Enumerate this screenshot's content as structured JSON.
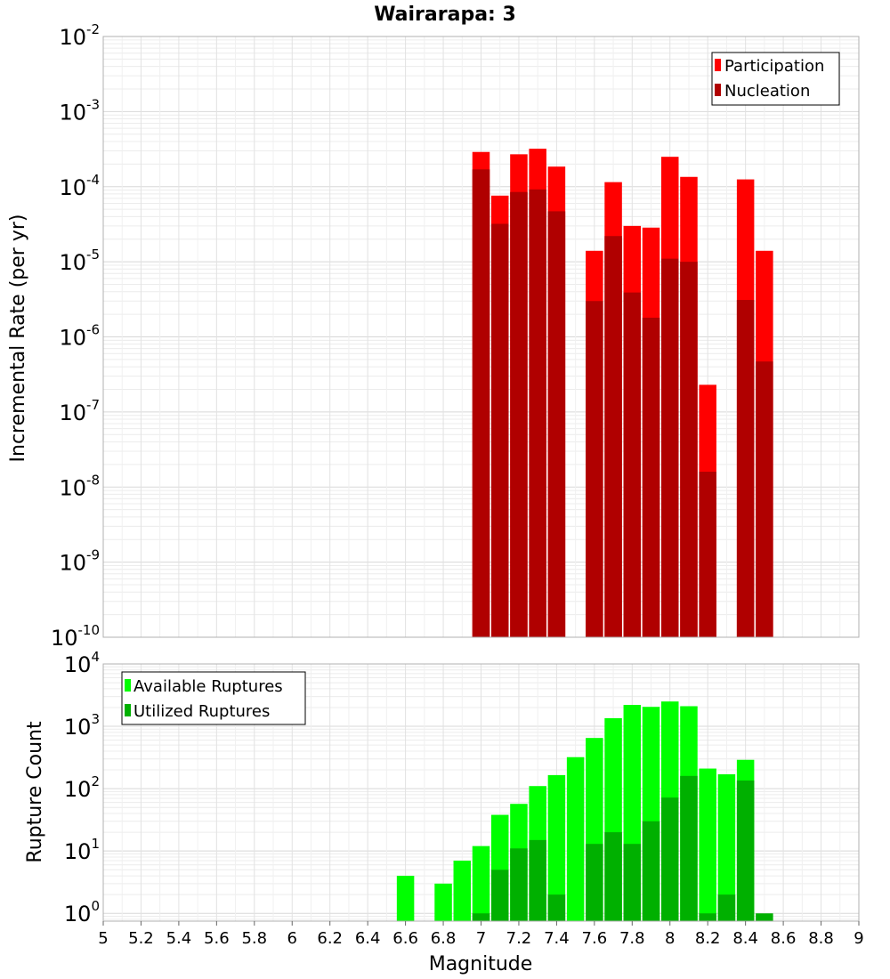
{
  "chart_data": [
    {
      "type": "bar",
      "title": "Wairarapa: 3",
      "xlabel": "",
      "ylabel": "Incremental Rate (per yr)",
      "yscale": "log",
      "ylim": [
        1e-10,
        0.01
      ],
      "xlim": [
        5,
        9
      ],
      "grid": true,
      "legend_position": "top-right",
      "x": [
        7.0,
        7.1,
        7.2,
        7.3,
        7.4,
        7.6,
        7.7,
        7.8,
        7.9,
        8.0,
        8.1,
        8.2,
        8.4,
        8.5
      ],
      "series": [
        {
          "name": "Participation",
          "color": "#ff0000",
          "values": [
            0.00029,
            7.6e-05,
            0.00027,
            0.00032,
            0.000185,
            1.4e-05,
            0.000115,
            3e-05,
            2.85e-05,
            0.00025,
            0.000135,
            2.3e-07,
            0.000125,
            1.4e-05
          ]
        },
        {
          "name": "Nucleation",
          "color": "#b00000",
          "values": [
            0.00017,
            3.2e-05,
            8.5e-05,
            9.2e-05,
            4.7e-05,
            3e-06,
            2.2e-05,
            3.9e-06,
            1.8e-06,
            1.1e-05,
            1e-05,
            1.6e-08,
            3.1e-06,
            4.7e-07
          ]
        }
      ],
      "y_ticks": [
        {
          "base": "10",
          "exp": "-2"
        },
        {
          "base": "10",
          "exp": "-3"
        },
        {
          "base": "10",
          "exp": "-4"
        },
        {
          "base": "10",
          "exp": "-5"
        },
        {
          "base": "10",
          "exp": "-6"
        },
        {
          "base": "10",
          "exp": "-7"
        },
        {
          "base": "10",
          "exp": "-8"
        },
        {
          "base": "10",
          "exp": "-9"
        },
        {
          "base": "10",
          "exp": "-10"
        }
      ]
    },
    {
      "type": "bar",
      "title": "",
      "xlabel": "Magnitude",
      "ylabel": "Rupture Count",
      "yscale": "log",
      "ylim": [
        0.75,
        10000
      ],
      "xlim": [
        5,
        9
      ],
      "grid": true,
      "legend_position": "top-left",
      "x": [
        6.6,
        6.8,
        6.9,
        7.0,
        7.1,
        7.2,
        7.3,
        7.4,
        7.5,
        7.6,
        7.7,
        7.8,
        7.9,
        8.0,
        8.1,
        8.2,
        8.3,
        8.4,
        8.5
      ],
      "series": [
        {
          "name": "Available Ruptures",
          "color": "#00ff00",
          "values": [
            4,
            3,
            7,
            12,
            38,
            57,
            110,
            165,
            320,
            650,
            1350,
            2200,
            2050,
            2500,
            2100,
            210,
            170,
            290,
            0
          ]
        },
        {
          "name": "Utilized Ruptures",
          "color": "#00b000",
          "values": [
            0,
            0,
            0,
            1,
            5,
            11,
            15,
            2,
            0,
            13,
            20,
            13,
            30,
            72,
            160,
            1,
            2,
            135,
            1
          ]
        }
      ],
      "x_ticks": [
        "5",
        "5.2",
        "5.4",
        "5.6",
        "5.8",
        "6",
        "6.2",
        "6.4",
        "6.6",
        "6.8",
        "7",
        "7.2",
        "7.4",
        "7.6",
        "7.8",
        "8",
        "8.2",
        "8.4",
        "8.6",
        "8.8",
        "9"
      ],
      "y_ticks": [
        {
          "base": "10",
          "exp": "4"
        },
        {
          "base": "10",
          "exp": "3"
        },
        {
          "base": "10",
          "exp": "2"
        },
        {
          "base": "10",
          "exp": "1"
        },
        {
          "base": "10",
          "exp": "0"
        }
      ]
    }
  ]
}
